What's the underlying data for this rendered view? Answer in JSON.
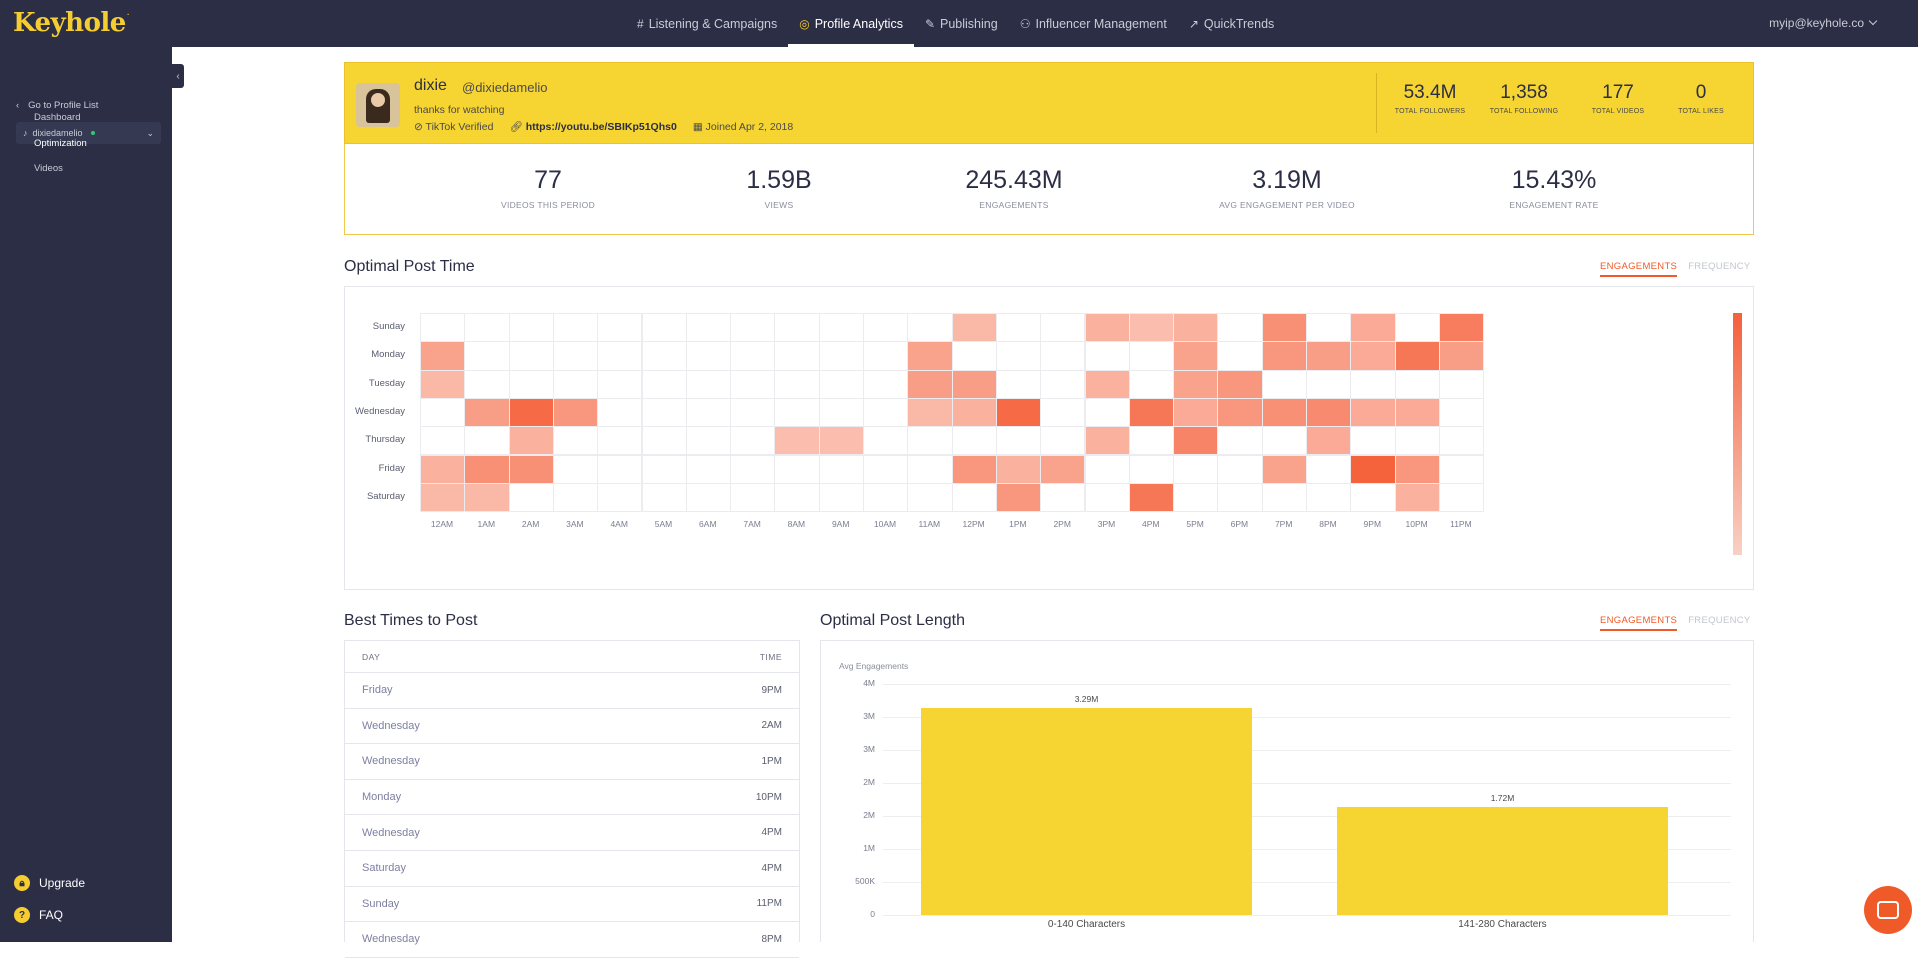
{
  "app": {
    "logo": "Keyhole",
    "logo_mark": "."
  },
  "nav": [
    {
      "icon": "#",
      "label": "Listening & Campaigns",
      "active": false
    },
    {
      "icon": "◎",
      "label": "Profile Analytics",
      "active": true
    },
    {
      "icon": "✎",
      "label": "Publishing",
      "active": false
    },
    {
      "icon": "⚇",
      "label": "Influencer Management",
      "active": false
    },
    {
      "icon": "↗",
      "label": "QuickTrends",
      "active": false
    }
  ],
  "user": {
    "email": "myip@keyhole.co"
  },
  "sidebar": {
    "back_label": "Go to Profile List",
    "profile": "dixiedamelio",
    "items": [
      {
        "label": "Dashboard",
        "active": false
      },
      {
        "label": "Optimization",
        "active": true
      },
      {
        "label": "Videos",
        "active": false
      }
    ],
    "upgrade": "Upgrade",
    "faq": "FAQ"
  },
  "profile": {
    "name": "dixie",
    "handle": "@dixiedamelio",
    "bio": "thanks for watching",
    "verified": "TikTok Verified",
    "link": "https://youtu.be/SBIKp51Qhs0",
    "joined": "Joined Apr 2, 2018"
  },
  "header_stats": [
    {
      "value": "53.4M",
      "label": "TOTAL FOLLOWERS"
    },
    {
      "value": "1,358",
      "label": "TOTAL FOLLOWING"
    },
    {
      "value": "177",
      "label": "TOTAL VIDEOS"
    },
    {
      "value": "0",
      "label": "TOTAL LIKES"
    }
  ],
  "period_stats": [
    {
      "value": "77",
      "label": "VIDEOS THIS PERIOD"
    },
    {
      "value": "1.59B",
      "label": "VIEWS"
    },
    {
      "value": "245.43M",
      "label": "ENGAGEMENTS"
    },
    {
      "value": "3.19M",
      "label": "AVG ENGAGEMENT PER VIDEO"
    },
    {
      "value": "15.43%",
      "label": "ENGAGEMENT RATE"
    }
  ],
  "optimal_post_time": {
    "title": "Optimal Post Time",
    "tabs": [
      "ENGAGEMENTS",
      "FREQUENCY"
    ],
    "days": [
      "Sunday",
      "Monday",
      "Tuesday",
      "Wednesday",
      "Thursday",
      "Friday",
      "Saturday"
    ],
    "hours": [
      "12AM",
      "1AM",
      "2AM",
      "3AM",
      "4AM",
      "5AM",
      "6AM",
      "7AM",
      "8AM",
      "9AM",
      "10AM",
      "11AM",
      "12PM",
      "1PM",
      "2PM",
      "3PM",
      "4PM",
      "5PM",
      "6PM",
      "7PM",
      "8PM",
      "9PM",
      "10PM",
      "11PM"
    ],
    "intensity": [
      [
        0,
        0,
        0,
        0,
        0,
        0,
        0,
        0,
        0,
        0,
        0,
        0,
        0.35,
        0,
        0,
        0.4,
        0.3,
        0.4,
        0,
        0.65,
        0,
        0.45,
        0,
        0.8
      ],
      [
        0.5,
        0,
        0,
        0,
        0,
        0,
        0,
        0,
        0,
        0,
        0,
        0.5,
        0,
        0,
        0,
        0,
        0,
        0.5,
        0,
        0.6,
        0.55,
        0.45,
        0.85,
        0.55
      ],
      [
        0.35,
        0,
        0,
        0,
        0,
        0,
        0,
        0,
        0,
        0,
        0,
        0.55,
        0.55,
        0,
        0,
        0.4,
        0,
        0.5,
        0.6,
        0,
        0,
        0,
        0,
        0
      ],
      [
        0,
        0.55,
        0.95,
        0.6,
        0,
        0,
        0,
        0,
        0,
        0,
        0,
        0.35,
        0.4,
        0.95,
        0,
        0,
        0.85,
        0.45,
        0.6,
        0.65,
        0.7,
        0.45,
        0.45,
        0
      ],
      [
        0,
        0,
        0.4,
        0,
        0,
        0,
        0,
        0,
        0.3,
        0.3,
        0,
        0,
        0,
        0,
        0,
        0.4,
        0,
        0.75,
        0,
        0,
        0.45,
        0,
        0,
        0
      ],
      [
        0.4,
        0.65,
        0.65,
        0,
        0,
        0,
        0,
        0,
        0,
        0,
        0,
        0,
        0.6,
        0.4,
        0.5,
        0,
        0,
        0,
        0,
        0.5,
        0,
        1.0,
        0.6,
        0
      ],
      [
        0.35,
        0.35,
        0,
        0,
        0,
        0,
        0,
        0,
        0,
        0,
        0,
        0,
        0,
        0.6,
        0,
        0,
        0.85,
        0,
        0,
        0,
        0,
        0,
        0.4,
        0
      ]
    ]
  },
  "best_times": {
    "title": "Best Times to Post",
    "col_day": "DAY",
    "col_time": "TIME",
    "rows": [
      {
        "day": "Friday",
        "time": "9PM"
      },
      {
        "day": "Wednesday",
        "time": "2AM"
      },
      {
        "day": "Wednesday",
        "time": "1PM"
      },
      {
        "day": "Monday",
        "time": "10PM"
      },
      {
        "day": "Wednesday",
        "time": "4PM"
      },
      {
        "day": "Saturday",
        "time": "4PM"
      },
      {
        "day": "Sunday",
        "time": "11PM"
      },
      {
        "day": "Wednesday",
        "time": "8PM"
      }
    ]
  },
  "chart_data": {
    "type": "bar",
    "title": "Optimal Post Length",
    "tabs": [
      "ENGAGEMENTS",
      "FREQUENCY"
    ],
    "ylabel": "Avg Engagements",
    "categories": [
      "0-140 Characters",
      "141-280 Characters"
    ],
    "values": [
      3290000,
      1720000
    ],
    "data_labels": [
      "3.29M",
      "1.72M"
    ],
    "yticks": [
      "0",
      "500K",
      "1M",
      "2M",
      "2M",
      "3M",
      "3M",
      "4M"
    ],
    "ylim": [
      0,
      3500000
    ],
    "grid": true,
    "color": "#f6d432"
  },
  "colors": {
    "accent": "#f05a28",
    "brand": "#f6d432",
    "nav_bg": "#2b2e45"
  }
}
